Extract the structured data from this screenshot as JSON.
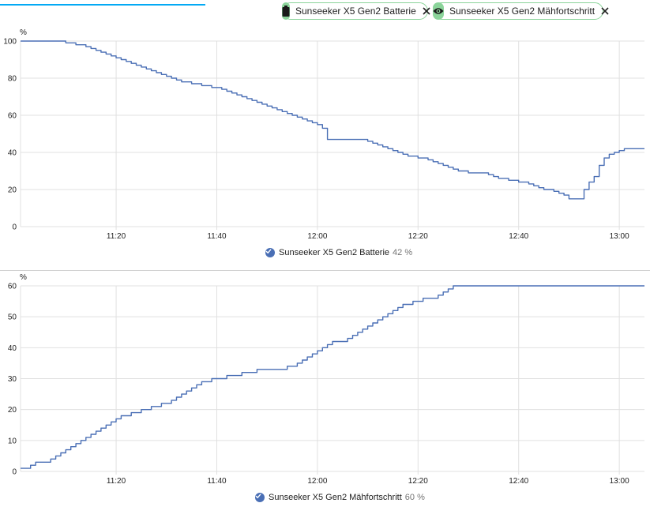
{
  "filters": [
    {
      "label": "Sunseeker X5 Gen2 Batterie",
      "icon": "battery-icon"
    },
    {
      "label": "Sunseeker X5 Gen2 Mähfortschritt",
      "icon": "eye-icon"
    }
  ],
  "chart_data": [
    {
      "type": "line",
      "step": true,
      "ylabel": "%",
      "xlabel": "",
      "xlim": [
        "11:01",
        "13:05"
      ],
      "ylim": [
        0,
        100
      ],
      "yticks": [
        0,
        20,
        40,
        60,
        80,
        100
      ],
      "xticks": [
        "11:20",
        "11:40",
        "12:00",
        "12:20",
        "12:40",
        "13:00"
      ],
      "grid": true,
      "legend_position": "bottom-center",
      "legend": {
        "label": "Sunseeker X5 Gen2 Batterie",
        "value": "42",
        "unit": "%"
      },
      "color": "#4a6fb5",
      "series": [
        {
          "name": "Sunseeker X5 Gen2 Batterie",
          "x": [
            "11:01",
            "11:10",
            "11:12",
            "11:14",
            "11:15",
            "11:16",
            "11:17",
            "11:18",
            "11:19",
            "11:20",
            "11:21",
            "11:22",
            "11:23",
            "11:24",
            "11:25",
            "11:26",
            "11:27",
            "11:28",
            "11:29",
            "11:30",
            "11:31",
            "11:32",
            "11:33",
            "11:35",
            "11:37",
            "11:39",
            "11:41",
            "11:42",
            "11:43",
            "11:44",
            "11:45",
            "11:46",
            "11:47",
            "11:48",
            "11:49",
            "11:50",
            "11:51",
            "11:52",
            "11:53",
            "11:54",
            "11:55",
            "11:56",
            "11:57",
            "11:58",
            "11:59",
            "12:00",
            "12:01",
            "12:02",
            "12:03",
            "12:04",
            "12:08",
            "12:10",
            "12:11",
            "12:12",
            "12:13",
            "12:14",
            "12:15",
            "12:16",
            "12:17",
            "12:18",
            "12:20",
            "12:22",
            "12:23",
            "12:24",
            "12:25",
            "12:26",
            "12:27",
            "12:28",
            "12:30",
            "12:34",
            "12:35",
            "12:36",
            "12:38",
            "12:40",
            "12:42",
            "12:43",
            "12:44",
            "12:45",
            "12:47",
            "12:48",
            "12:49",
            "12:50",
            "12:52",
            "12:53",
            "12:54",
            "12:55",
            "12:56",
            "12:57",
            "12:58",
            "12:59",
            "13:00",
            "13:01",
            "13:02",
            "13:03",
            "13:04",
            "13:05"
          ],
          "y": [
            100,
            99,
            98,
            97,
            96,
            95,
            94,
            93,
            92,
            91,
            90,
            89,
            88,
            87,
            86,
            85,
            84,
            83,
            82,
            81,
            80,
            79,
            78,
            77,
            76,
            75,
            74,
            73,
            72,
            71,
            70,
            69,
            68,
            67,
            66,
            65,
            64,
            63,
            62,
            61,
            60,
            59,
            58,
            57,
            56,
            55,
            53,
            47,
            47,
            47,
            47,
            46,
            45,
            44,
            43,
            42,
            41,
            40,
            39,
            38,
            37,
            36,
            35,
            34,
            33,
            32,
            31,
            30,
            29,
            28,
            27,
            26,
            25,
            24,
            23,
            22,
            21,
            20,
            19,
            18,
            17,
            15,
            15,
            20,
            24,
            27,
            33,
            37,
            39,
            40,
            41,
            42,
            42,
            42,
            42,
            42
          ]
        }
      ]
    },
    {
      "type": "line",
      "step": true,
      "ylabel": "%",
      "xlabel": "",
      "xlim": [
        "11:01",
        "13:05"
      ],
      "ylim": [
        0,
        60
      ],
      "yticks": [
        0,
        10,
        20,
        30,
        40,
        50,
        60
      ],
      "xticks": [
        "11:20",
        "11:40",
        "12:00",
        "12:20",
        "12:40",
        "13:00"
      ],
      "grid": true,
      "legend_position": "bottom-center",
      "legend": {
        "label": "Sunseeker X5 Gen2 Mähfortschritt",
        "value": "60",
        "unit": "%"
      },
      "color": "#4a6fb5",
      "series": [
        {
          "name": "Sunseeker X5 Gen2 Mähfortschritt",
          "x": [
            "11:01",
            "11:03",
            "11:04",
            "11:07",
            "11:08",
            "11:09",
            "11:10",
            "11:11",
            "11:12",
            "11:13",
            "11:14",
            "11:15",
            "11:16",
            "11:17",
            "11:18",
            "11:19",
            "11:20",
            "11:21",
            "11:23",
            "11:25",
            "11:27",
            "11:29",
            "11:31",
            "11:32",
            "11:33",
            "11:34",
            "11:35",
            "11:36",
            "11:37",
            "11:39",
            "11:42",
            "11:45",
            "11:48",
            "11:54",
            "11:56",
            "11:57",
            "11:58",
            "11:59",
            "12:00",
            "12:01",
            "12:02",
            "12:03",
            "12:06",
            "12:07",
            "12:08",
            "12:09",
            "12:10",
            "12:11",
            "12:12",
            "12:13",
            "12:14",
            "12:15",
            "12:16",
            "12:17",
            "12:19",
            "12:21",
            "12:24",
            "12:25",
            "12:26",
            "12:27",
            "12:28",
            "12:30",
            "12:32",
            "12:35",
            "12:39",
            "12:44",
            "12:53",
            "13:05"
          ],
          "y": [
            1,
            2,
            3,
            4,
            5,
            6,
            7,
            8,
            9,
            10,
            11,
            12,
            13,
            14,
            15,
            16,
            17,
            18,
            19,
            20,
            21,
            22,
            23,
            24,
            25,
            26,
            27,
            28,
            29,
            30,
            31,
            32,
            33,
            34,
            35,
            36,
            37,
            38,
            39,
            40,
            41,
            42,
            43,
            44,
            45,
            46,
            47,
            48,
            49,
            50,
            51,
            52,
            53,
            54,
            55,
            56,
            57,
            58,
            59,
            60,
            60,
            60,
            60,
            60,
            60,
            60,
            60,
            60
          ]
        }
      ]
    }
  ]
}
